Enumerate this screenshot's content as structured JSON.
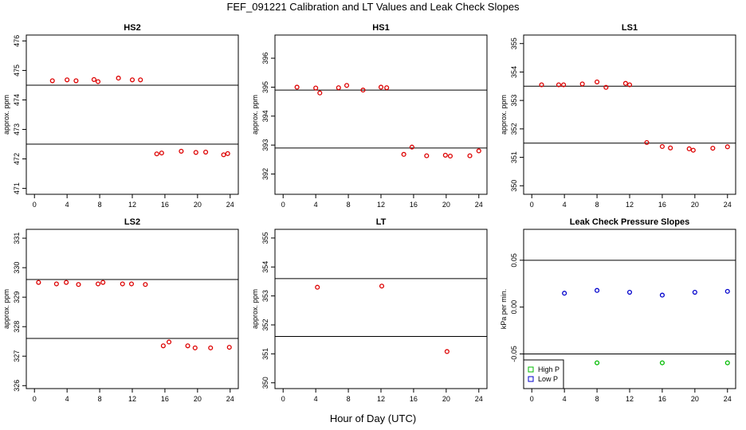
{
  "figure": {
    "title": "FEF_091221  Calibration and LT Values and Leak Check Slopes",
    "xlabel": "Hour of Day (UTC)"
  },
  "chart_data": [
    {
      "type": "scatter",
      "title": "HS2",
      "ylabel": "approx. ppm",
      "xlim": [
        -1,
        25
      ],
      "ylim": [
        470.8,
        476.2
      ],
      "xticks": [
        0,
        4,
        8,
        12,
        16,
        20,
        24
      ],
      "yticks": [
        471,
        472,
        473,
        474,
        475,
        476
      ],
      "hlines": [
        474.5,
        472.5
      ],
      "series": [
        {
          "marker": "o",
          "color": "#dd0000",
          "x": [
            2.2,
            4.0,
            5.1,
            7.3,
            7.8,
            10.3,
            12.0,
            13.0,
            15.0,
            15.6,
            18.0,
            19.8,
            21.0,
            23.2,
            23.7
          ],
          "y": [
            474.65,
            474.68,
            474.65,
            474.69,
            474.62,
            474.74,
            474.68,
            474.68,
            472.17,
            472.2,
            472.26,
            472.22,
            472.23,
            472.14,
            472.18
          ]
        }
      ]
    },
    {
      "type": "scatter",
      "title": "HS1",
      "ylabel": "approx. ppm",
      "xlim": [
        -1,
        25
      ],
      "ylim": [
        391.3,
        396.8
      ],
      "xticks": [
        0,
        4,
        8,
        12,
        16,
        20,
        24
      ],
      "yticks": [
        392,
        393,
        394,
        395,
        396
      ],
      "hlines": [
        394.9,
        392.9
      ],
      "series": [
        {
          "marker": "o",
          "color": "#dd0000",
          "x": [
            1.7,
            4.0,
            4.5,
            6.8,
            7.8,
            9.8,
            12.0,
            12.7,
            14.8,
            15.8,
            17.6,
            19.9,
            20.5,
            22.9,
            24.0
          ],
          "y": [
            395.0,
            394.97,
            394.8,
            394.98,
            395.06,
            394.9,
            395.0,
            394.98,
            392.68,
            392.93,
            392.63,
            392.65,
            392.62,
            392.63,
            392.8
          ]
        }
      ]
    },
    {
      "type": "scatter",
      "title": "LS1",
      "ylabel": "approx. ppm",
      "xlim": [
        -1,
        25
      ],
      "ylim": [
        349.7,
        355.3
      ],
      "xticks": [
        0,
        4,
        8,
        12,
        16,
        20,
        24
      ],
      "yticks": [
        350,
        351,
        352,
        353,
        354,
        355
      ],
      "hlines": [
        353.5,
        351.5
      ],
      "series": [
        {
          "marker": "o",
          "color": "#dd0000",
          "x": [
            1.2,
            3.3,
            3.9,
            6.2,
            8.0,
            9.1,
            11.5,
            12.0,
            14.1,
            16.0,
            17.0,
            19.3,
            19.8,
            22.2,
            24.0
          ],
          "y": [
            353.55,
            353.55,
            353.55,
            353.58,
            353.65,
            353.46,
            353.6,
            353.55,
            351.52,
            351.38,
            351.33,
            351.3,
            351.25,
            351.32,
            351.37
          ]
        }
      ]
    },
    {
      "type": "scatter",
      "title": "LS2",
      "ylabel": "approx. ppm",
      "xlim": [
        -1,
        25
      ],
      "ylim": [
        325.9,
        331.3
      ],
      "xticks": [
        0,
        4,
        8,
        12,
        16,
        20,
        24
      ],
      "yticks": [
        326,
        327,
        328,
        329,
        330,
        331
      ],
      "hlines": [
        329.6,
        327.6
      ],
      "series": [
        {
          "marker": "o",
          "color": "#dd0000",
          "x": [
            0.5,
            2.7,
            3.9,
            5.4,
            7.8,
            8.4,
            10.8,
            11.9,
            13.6,
            15.8,
            16.5,
            18.8,
            19.7,
            21.6,
            23.9
          ],
          "y": [
            329.5,
            329.45,
            329.5,
            329.43,
            329.45,
            329.5,
            329.45,
            329.45,
            329.43,
            327.35,
            327.48,
            327.35,
            327.28,
            327.28,
            327.3
          ]
        }
      ]
    },
    {
      "type": "scatter",
      "title": "LT",
      "ylabel": "approx. ppm",
      "xlim": [
        -1,
        25
      ],
      "ylim": [
        349.8,
        355.3
      ],
      "xticks": [
        0,
        4,
        8,
        12,
        16,
        20,
        24
      ],
      "yticks": [
        350,
        351,
        352,
        353,
        354,
        355
      ],
      "hlines": [
        353.6,
        351.6
      ],
      "series": [
        {
          "marker": "o",
          "color": "#dd0000",
          "x": [
            4.2,
            12.1,
            20.1
          ],
          "y": [
            353.3,
            353.34,
            351.08
          ]
        }
      ]
    },
    {
      "type": "scatter",
      "title": "Leak Check Pressure Slopes",
      "ylabel": "kPa per min.",
      "xlim": [
        -1,
        25
      ],
      "ylim": [
        -0.087,
        0.083
      ],
      "xticks": [
        0,
        4,
        8,
        12,
        16,
        20,
        24
      ],
      "yticks": [
        -0.05,
        0.0,
        0.05
      ],
      "ytick_labels": [
        "-0.05",
        "0.00",
        "0.05"
      ],
      "hlines": [
        0.05,
        -0.05
      ],
      "legend": {
        "placement": "bottom-left",
        "entries": [
          "High P",
          "Low P"
        ]
      },
      "series": [
        {
          "name": "High P",
          "marker": "o",
          "color": "#00bb00",
          "x": [
            8,
            16,
            24
          ],
          "y": [
            -0.0595,
            -0.0595,
            -0.0595
          ]
        },
        {
          "name": "Low P",
          "marker": "o",
          "color": "#0000cc",
          "x": [
            4,
            8,
            12,
            16,
            20,
            24
          ],
          "y": [
            0.0148,
            0.0178,
            0.0158,
            0.0128,
            0.0158,
            0.0168
          ]
        }
      ]
    }
  ]
}
